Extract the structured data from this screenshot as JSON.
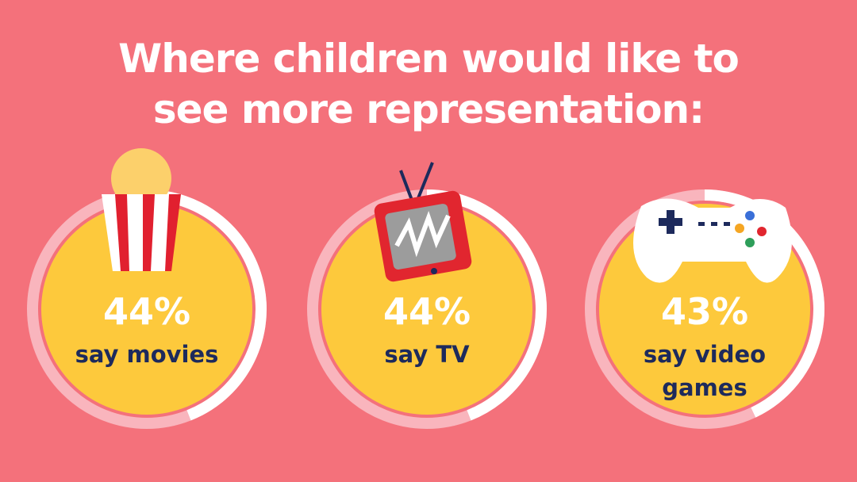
{
  "chart_data": {
    "type": "donut",
    "title": "Where children would like to see more representation:",
    "categories": [
      "say movies",
      "say TV",
      "say video games"
    ],
    "values": [
      44,
      44,
      43
    ],
    "value_labels": [
      "44%",
      "44%",
      "43%"
    ],
    "color": "#ffffff",
    "track_color": "#f9b5bd",
    "fill_color": "#fdc93c"
  }
}
